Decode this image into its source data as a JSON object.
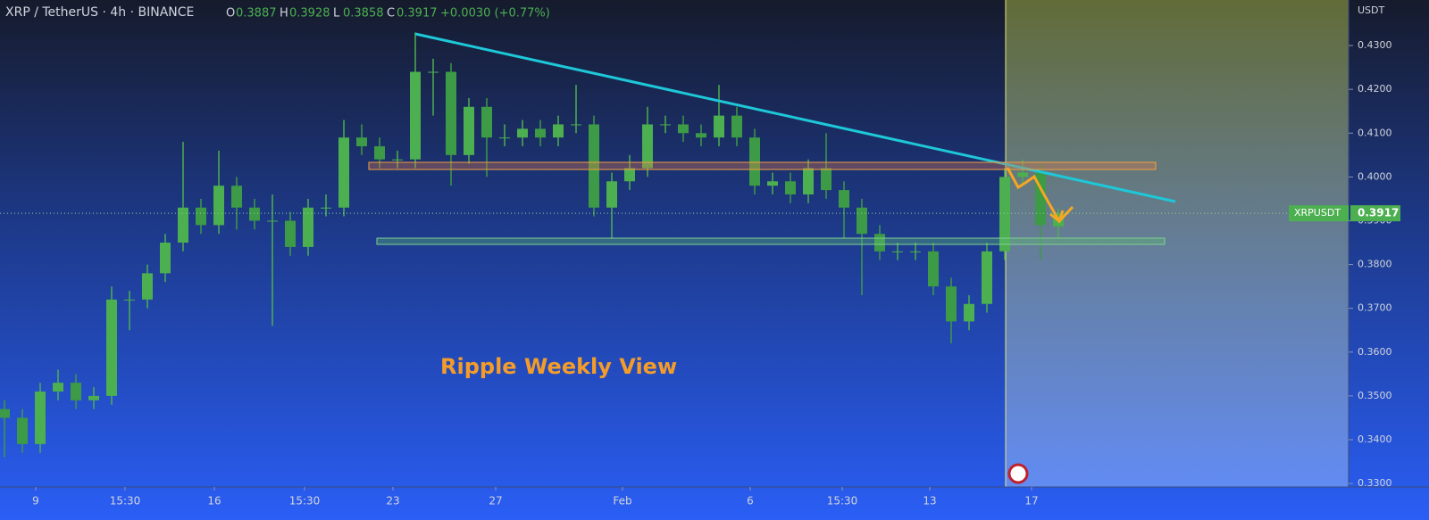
{
  "chart_data": {
    "type": "candlestick",
    "title": "XRP / TetherUS · 4h · BINANCE",
    "ohlc_labels": [
      "O",
      "H",
      "L",
      "C"
    ],
    "change": "+0.0030 (+0.77%)",
    "annotation": "Ripple Weekly View",
    "y_axis_label": "USDT",
    "symbol_tag": "XRPUSDT",
    "up_color": "#4caf50",
    "down_color": "#3d9a46",
    "open": [
      0.347,
      0.345,
      0.339,
      0.351,
      0.353,
      0.349,
      0.35,
      0.372,
      0.372,
      0.378,
      0.385,
      0.393,
      0.389,
      0.398,
      0.393,
      0.39,
      0.39,
      0.384,
      0.393,
      0.393,
      0.409,
      0.407,
      0.404,
      0.404,
      0.424,
      0.424,
      0.405,
      0.416,
      0.409,
      0.409,
      0.411,
      0.409,
      0.412,
      0.412,
      0.393,
      0.399,
      0.402,
      0.412,
      0.412,
      0.41,
      0.409,
      0.414,
      0.409,
      0.398,
      0.399,
      0.396,
      0.402,
      0.397,
      0.393,
      0.387,
      0.383,
      0.383,
      0.383,
      0.375,
      0.367,
      0.371,
      0.383,
      0.4,
      0.401,
      0.3887
    ],
    "high": [
      0.349,
      0.347,
      0.353,
      0.356,
      0.355,
      0.352,
      0.375,
      0.374,
      0.38,
      0.387,
      0.408,
      0.395,
      0.406,
      0.4,
      0.395,
      0.396,
      0.392,
      0.395,
      0.396,
      0.413,
      0.412,
      0.409,
      0.406,
      0.433,
      0.427,
      0.426,
      0.418,
      0.418,
      0.412,
      0.413,
      0.413,
      0.414,
      0.421,
      0.414,
      0.401,
      0.405,
      0.416,
      0.414,
      0.414,
      0.412,
      0.421,
      0.416,
      0.411,
      0.401,
      0.401,
      0.404,
      0.41,
      0.399,
      0.395,
      0.389,
      0.385,
      0.385,
      0.385,
      0.377,
      0.373,
      0.385,
      0.402,
      0.404,
      0.403,
      0.3928
    ],
    "low": [
      0.336,
      0.337,
      0.337,
      0.349,
      0.347,
      0.347,
      0.348,
      0.365,
      0.37,
      0.376,
      0.383,
      0.387,
      0.387,
      0.388,
      0.388,
      0.366,
      0.382,
      0.382,
      0.391,
      0.391,
      0.405,
      0.402,
      0.402,
      0.402,
      0.414,
      0.398,
      0.403,
      0.4,
      0.407,
      0.407,
      0.407,
      0.407,
      0.41,
      0.391,
      0.386,
      0.397,
      0.4,
      0.41,
      0.408,
      0.407,
      0.407,
      0.407,
      0.396,
      0.396,
      0.394,
      0.394,
      0.395,
      0.386,
      0.373,
      0.381,
      0.381,
      0.381,
      0.373,
      0.362,
      0.365,
      0.369,
      0.381,
      0.398,
      0.381,
      0.3858
    ],
    "close": [
      0.345,
      0.339,
      0.351,
      0.353,
      0.349,
      0.35,
      0.372,
      0.372,
      0.378,
      0.385,
      0.393,
      0.389,
      0.398,
      0.393,
      0.39,
      0.39,
      0.384,
      0.393,
      0.393,
      0.409,
      0.407,
      0.404,
      0.404,
      0.424,
      0.424,
      0.405,
      0.416,
      0.409,
      0.409,
      0.411,
      0.409,
      0.412,
      0.412,
      0.393,
      0.399,
      0.402,
      0.412,
      0.412,
      0.41,
      0.409,
      0.414,
      0.409,
      0.398,
      0.399,
      0.396,
      0.402,
      0.397,
      0.393,
      0.387,
      0.383,
      0.383,
      0.383,
      0.375,
      0.367,
      0.371,
      0.383,
      0.4,
      0.401,
      0.389,
      0.3917
    ],
    "ylim": [
      0.3292,
      0.4404
    ],
    "yticks": [
      {
        "value": 0.33,
        "label": "0.3300"
      },
      {
        "value": 0.34,
        "label": "0.3400"
      },
      {
        "value": 0.35,
        "label": "0.3500"
      },
      {
        "value": 0.36,
        "label": "0.3600"
      },
      {
        "value": 0.37,
        "label": "0.3700"
      },
      {
        "value": 0.38,
        "label": "0.3800"
      },
      {
        "value": 0.39,
        "label": "0.3900"
      },
      {
        "value": 0.4,
        "label": "0.4000"
      },
      {
        "value": 0.41,
        "label": "0.4100"
      },
      {
        "value": 0.42,
        "label": "0.4200"
      },
      {
        "value": 0.43,
        "label": "0.4300"
      }
    ],
    "xlim": [
      -0.25,
      75.25
    ],
    "xticks": [
      {
        "value": 1.75,
        "label": "9"
      },
      {
        "value": 6.75,
        "label": "15:30"
      },
      {
        "value": 11.75,
        "label": "16"
      },
      {
        "value": 16.8,
        "label": "15:30"
      },
      {
        "value": 21.75,
        "label": "23"
      },
      {
        "value": 27.5,
        "label": "27"
      },
      {
        "value": 34.6,
        "label": "Feb"
      },
      {
        "value": 41.75,
        "label": "6"
      },
      {
        "value": 46.9,
        "label": "15:30"
      },
      {
        "value": 51.8,
        "label": "13"
      },
      {
        "value": 57.5,
        "label": "17"
      }
    ]
  }
}
